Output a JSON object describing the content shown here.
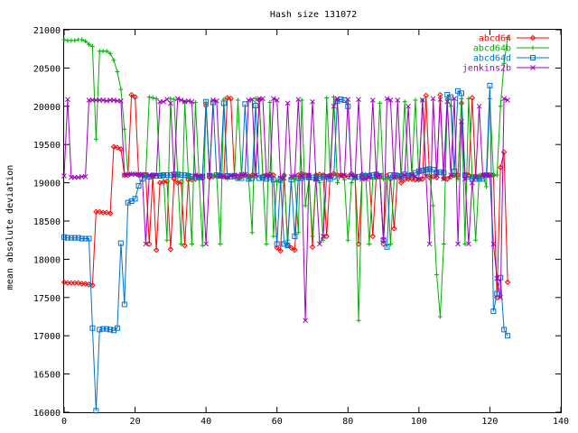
{
  "chart_data": {
    "type": "line",
    "title": "Hash size 131072",
    "xlabel": "",
    "ylabel": "mean absolute deviation",
    "xlim": [
      0,
      140
    ],
    "ylim": [
      16000,
      21000
    ],
    "xticks": [
      "0",
      "20",
      "40",
      "60",
      "80",
      "100",
      "120",
      "140"
    ],
    "yticks": [
      "16000",
      "16500",
      "17000",
      "17500",
      "18000",
      "18500",
      "19000",
      "19500",
      "20000",
      "20500",
      "21000"
    ],
    "grid": false,
    "legend_position": "top-right",
    "series": [
      {
        "name": "abcd64",
        "color": "#ff0000",
        "marker": "diamond",
        "x": [
          0,
          1,
          2,
          3,
          4,
          5,
          6,
          7,
          8,
          9,
          10,
          11,
          12,
          13,
          14,
          15,
          16,
          17,
          18,
          19,
          20,
          21,
          22,
          23,
          24,
          25,
          26,
          27,
          28,
          29,
          30,
          31,
          32,
          33,
          34,
          35,
          36,
          37,
          38,
          39,
          40,
          41,
          42,
          43,
          44,
          45,
          46,
          47,
          48,
          49,
          50,
          51,
          52,
          53,
          54,
          55,
          56,
          57,
          58,
          59,
          60,
          61,
          62,
          63,
          64,
          65,
          66,
          67,
          68,
          69,
          70,
          71,
          72,
          73,
          74,
          75,
          76,
          77,
          78,
          79,
          80,
          81,
          82,
          83,
          84,
          85,
          86,
          87,
          88,
          89,
          90,
          91,
          92,
          93,
          94,
          95,
          96,
          97,
          98,
          99,
          100,
          101,
          102,
          103,
          104,
          105,
          106,
          107,
          108,
          109,
          110,
          111,
          112,
          113,
          114,
          115,
          116,
          117,
          118,
          119,
          120,
          121,
          122,
          123,
          124,
          125
        ],
        "y": [
          17700,
          17690,
          17690,
          17690,
          17690,
          17680,
          17680,
          17670,
          17660,
          18620,
          18620,
          18610,
          18610,
          18600,
          19470,
          19460,
          19440,
          19100,
          19100,
          20150,
          20120,
          19100,
          19100,
          19100,
          18200,
          19100,
          18120,
          19000,
          19010,
          19020,
          18130,
          19050,
          19000,
          19010,
          18180,
          19040,
          19040,
          19050,
          19060,
          19060,
          20010,
          19070,
          19080,
          19090,
          19090,
          19080,
          20110,
          20100,
          19080,
          19070,
          19080,
          19100,
          19090,
          19100,
          19090,
          20080,
          19090,
          19100,
          19110,
          19100,
          18150,
          18110,
          19100,
          18180,
          18150,
          18120,
          19100,
          19120,
          19100,
          19100,
          18160,
          19100,
          19110,
          19100,
          18300,
          19100,
          19120,
          19100,
          19100,
          19090,
          19080,
          19120,
          19080,
          18200,
          19110,
          19100,
          19100,
          18300,
          19110,
          19080,
          18200,
          19090,
          19050,
          18400,
          19100,
          19000,
          19040,
          19050,
          19050,
          19040,
          19040,
          19050,
          20140,
          19070,
          19080,
          19070,
          20150,
          19060,
          19050,
          19080,
          19100,
          19100,
          20040,
          19100,
          19100,
          20110,
          19090,
          19080,
          19100,
          19100,
          19100,
          19100,
          17500,
          19200,
          19400,
          17700
        ]
      },
      {
        "name": "abcd64b",
        "color": "#00b000",
        "marker": "plus",
        "x": [
          0,
          1,
          2,
          3,
          4,
          5,
          6,
          7,
          8,
          9,
          10,
          11,
          12,
          13,
          14,
          15,
          16,
          17,
          18,
          19,
          20,
          21,
          22,
          23,
          24,
          25,
          26,
          27,
          28,
          29,
          30,
          31,
          32,
          33,
          34,
          35,
          36,
          37,
          38,
          39,
          40,
          41,
          42,
          43,
          44,
          45,
          46,
          47,
          48,
          49,
          50,
          51,
          52,
          53,
          54,
          55,
          56,
          57,
          58,
          59,
          60,
          61,
          62,
          63,
          64,
          65,
          66,
          67,
          68,
          69,
          70,
          71,
          72,
          73,
          74,
          75,
          76,
          77,
          78,
          79,
          80,
          81,
          82,
          83,
          84,
          85,
          86,
          87,
          88,
          89,
          90,
          91,
          92,
          93,
          94,
          95,
          96,
          97,
          98,
          99,
          100,
          101,
          102,
          103,
          104,
          105,
          106,
          107,
          108,
          109,
          110,
          111,
          112,
          113,
          114,
          115,
          116,
          117,
          118,
          119,
          120,
          121,
          122,
          123,
          124,
          125
        ],
        "y": [
          20870,
          20860,
          20860,
          20860,
          20870,
          20870,
          20850,
          20810,
          20780,
          19570,
          20720,
          20720,
          20720,
          20690,
          20600,
          20450,
          20220,
          19700,
          19120,
          19120,
          19120,
          19100,
          19110,
          19100,
          20120,
          20110,
          20100,
          19100,
          19110,
          18250,
          20100,
          20090,
          19100,
          18200,
          20060,
          19100,
          18200,
          20050,
          19100,
          18180,
          20050,
          19100,
          19100,
          19100,
          18200,
          20090,
          19050,
          19100,
          19100,
          20080,
          19080,
          19100,
          19050,
          18350,
          20100,
          20080,
          19100,
          18200,
          20050,
          18300,
          19020,
          19000,
          19100,
          18250,
          19050,
          19050,
          18350,
          20080,
          18700,
          19050,
          18300,
          19100,
          19000,
          18250,
          20110,
          19100,
          20120,
          19000,
          19100,
          19040,
          18250,
          19000,
          19100,
          17200,
          19100,
          19100,
          18200,
          19050,
          19050,
          20040,
          19050,
          19050,
          18200,
          19050,
          19100,
          19050,
          20060,
          19100,
          19100,
          20080,
          19050,
          20080,
          19100,
          19100,
          18700,
          17800,
          17250,
          18200,
          20100,
          20000,
          19100,
          19050,
          20100,
          18200,
          20100,
          19100,
          18250,
          19100,
          19100,
          18950,
          20100,
          19100,
          19100,
          20000,
          20560,
          20900
        ]
      },
      {
        "name": "abcd64d",
        "color": "#0070d0",
        "marker": "square",
        "x": [
          0,
          1,
          2,
          3,
          4,
          5,
          6,
          7,
          8,
          9,
          10,
          11,
          12,
          13,
          14,
          15,
          16,
          17,
          18,
          19,
          20,
          21,
          22,
          23,
          24,
          25,
          26,
          27,
          28,
          29,
          30,
          31,
          32,
          33,
          34,
          35,
          36,
          37,
          38,
          39,
          40,
          41,
          42,
          43,
          44,
          45,
          46,
          47,
          48,
          49,
          50,
          51,
          52,
          53,
          54,
          55,
          56,
          57,
          58,
          59,
          60,
          61,
          62,
          63,
          64,
          65,
          66,
          67,
          68,
          69,
          70,
          71,
          72,
          73,
          74,
          75,
          76,
          77,
          78,
          79,
          80,
          81,
          82,
          83,
          84,
          85,
          86,
          87,
          88,
          89,
          90,
          91,
          92,
          93,
          94,
          95,
          96,
          97,
          98,
          99,
          100,
          101,
          102,
          103,
          104,
          105,
          106,
          107,
          108,
          109,
          110,
          111,
          112,
          113,
          114,
          115,
          116,
          117,
          118,
          119,
          120,
          121,
          122,
          123,
          124,
          125
        ],
        "y": [
          18290,
          18280,
          18280,
          18280,
          18280,
          18270,
          18270,
          18270,
          17100,
          16020,
          17080,
          17090,
          17090,
          17080,
          17070,
          17100,
          18210,
          17410,
          18740,
          18760,
          18790,
          18960,
          19050,
          19100,
          19080,
          19090,
          19090,
          19090,
          19100,
          19100,
          19100,
          19110,
          19110,
          19100,
          19100,
          19090,
          19080,
          19080,
          19070,
          19080,
          20060,
          19090,
          20050,
          19100,
          19090,
          20040,
          19090,
          19080,
          19090,
          19060,
          19060,
          20030,
          19050,
          19060,
          20010,
          19060,
          19070,
          19050,
          19070,
          19040,
          18200,
          19050,
          18200,
          18180,
          19040,
          18300,
          19060,
          19060,
          19080,
          19070,
          19070,
          19050,
          19060,
          19080,
          19080,
          19050,
          19080,
          20070,
          20090,
          20080,
          20000,
          19080,
          19070,
          19080,
          19080,
          19090,
          19090,
          19100,
          19110,
          19090,
          18250,
          18160,
          19100,
          19100,
          19090,
          19080,
          19110,
          19090,
          19100,
          19130,
          19150,
          19160,
          19170,
          19180,
          19170,
          19130,
          19140,
          19130,
          20150,
          20120,
          19150,
          20200,
          20170,
          19100,
          19080,
          19050,
          19050,
          19050,
          19050,
          19100,
          20270,
          17320,
          17550,
          17760,
          17080,
          17000
        ]
      },
      {
        "name": "jenkins2b",
        "color": "#a000c0",
        "marker": "cross",
        "x": [
          0,
          1,
          2,
          3,
          4,
          5,
          6,
          7,
          8,
          9,
          10,
          11,
          12,
          13,
          14,
          15,
          16,
          17,
          18,
          19,
          20,
          21,
          22,
          23,
          24,
          25,
          26,
          27,
          28,
          29,
          30,
          31,
          32,
          33,
          34,
          35,
          36,
          37,
          38,
          39,
          40,
          41,
          42,
          43,
          44,
          45,
          46,
          47,
          48,
          49,
          50,
          51,
          52,
          53,
          54,
          55,
          56,
          57,
          58,
          59,
          60,
          61,
          62,
          63,
          64,
          65,
          66,
          67,
          68,
          69,
          70,
          71,
          72,
          73,
          74,
          75,
          76,
          77,
          78,
          79,
          80,
          81,
          82,
          83,
          84,
          85,
          86,
          87,
          88,
          89,
          90,
          91,
          92,
          93,
          94,
          95,
          96,
          97,
          98,
          99,
          100,
          101,
          102,
          103,
          104,
          105,
          106,
          107,
          108,
          109,
          110,
          111,
          112,
          113,
          114,
          115,
          116,
          117,
          118,
          119,
          120,
          121,
          122,
          123,
          124,
          125
        ],
        "y": [
          19090,
          20090,
          19070,
          19070,
          19070,
          19080,
          19080,
          20080,
          20080,
          20080,
          20080,
          20080,
          20070,
          20080,
          20080,
          20070,
          20070,
          19100,
          19110,
          19110,
          19110,
          19110,
          19110,
          18200,
          19100,
          19100,
          19100,
          20060,
          20060,
          20090,
          20040,
          19090,
          20100,
          20080,
          20060,
          20070,
          20060,
          19100,
          19090,
          19090,
          18200,
          19100,
          20080,
          20070,
          19080,
          19080,
          19070,
          19090,
          19100,
          19100,
          19110,
          19110,
          20080,
          20090,
          19100,
          20100,
          20100,
          19090,
          19090,
          20100,
          20080,
          19060,
          19060,
          20040,
          19080,
          19090,
          20090,
          19090,
          17200,
          19100,
          20060,
          19050,
          18200,
          18300,
          19090,
          19080,
          20000,
          20100,
          19090,
          19100,
          20090,
          19100,
          19080,
          20090,
          19050,
          19050,
          19070,
          20080,
          19080,
          19100,
          18250,
          20100,
          20080,
          19070,
          20080,
          19060,
          19100,
          20000,
          19100,
          19080,
          19050,
          20080,
          19090,
          18200,
          20100,
          19100,
          20090,
          19050,
          20060,
          19100,
          20100,
          18200,
          19800,
          19050,
          18200,
          19000,
          19080,
          20000,
          19100,
          19100,
          19100,
          18200,
          17750,
          17500,
          20100,
          20080
        ]
      }
    ]
  }
}
